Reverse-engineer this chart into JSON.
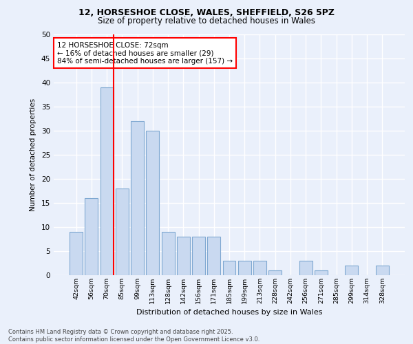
{
  "title_line1": "12, HORSESHOE CLOSE, WALES, SHEFFIELD, S26 5PZ",
  "title_line2": "Size of property relative to detached houses in Wales",
  "xlabel": "Distribution of detached houses by size in Wales",
  "ylabel": "Number of detached properties",
  "bins": [
    "42sqm",
    "56sqm",
    "70sqm",
    "85sqm",
    "99sqm",
    "113sqm",
    "128sqm",
    "142sqm",
    "156sqm",
    "171sqm",
    "185sqm",
    "199sqm",
    "213sqm",
    "228sqm",
    "242sqm",
    "256sqm",
    "271sqm",
    "285sqm",
    "299sqm",
    "314sqm",
    "328sqm"
  ],
  "values": [
    9,
    16,
    39,
    18,
    32,
    30,
    9,
    8,
    8,
    8,
    3,
    3,
    3,
    1,
    0,
    3,
    1,
    0,
    2,
    0,
    2
  ],
  "bar_color": "#c9d9f0",
  "bar_edge_color": "#7fa8d1",
  "vline_x_index": 2,
  "annotation_text": "12 HORSESHOE CLOSE: 72sqm\n← 16% of detached houses are smaller (29)\n84% of semi-detached houses are larger (157) →",
  "annotation_box_color": "white",
  "annotation_box_edge_color": "red",
  "vline_color": "red",
  "footer_text": "Contains HM Land Registry data © Crown copyright and database right 2025.\nContains public sector information licensed under the Open Government Licence v3.0.",
  "background_color": "#eaf0fb",
  "plot_background_color": "#eaf0fb",
  "ylim": [
    0,
    50
  ],
  "yticks": [
    0,
    5,
    10,
    15,
    20,
    25,
    30,
    35,
    40,
    45,
    50
  ]
}
